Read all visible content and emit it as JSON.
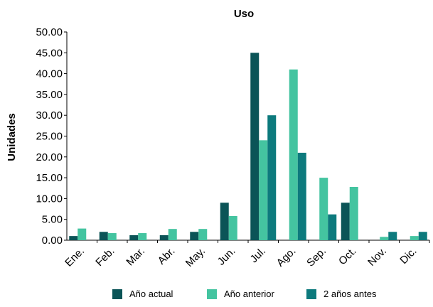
{
  "chart_data": {
    "type": "bar",
    "title": "Uso",
    "xlabel": "",
    "ylabel": "Unidades",
    "ylim": [
      0,
      50
    ],
    "yticks": [
      "0.00",
      "5.00",
      "10.00",
      "15.00",
      "20.00",
      "25.00",
      "30.00",
      "35.00",
      "40.00",
      "45.00",
      "50.00"
    ],
    "categories": [
      "Ene.",
      "Feb.",
      "Mar.",
      "Abr.",
      "May.",
      "Jun.",
      "Jul.",
      "Ago.",
      "Sep.",
      "Oct.",
      "Nov.",
      "Dic."
    ],
    "grid": false,
    "legend_position": "bottom",
    "series": [
      {
        "name": "Año actual",
        "color": "#0b5457",
        "values": [
          1.0,
          2.0,
          1.2,
          1.2,
          2.0,
          9.0,
          45.0,
          0,
          0,
          9.0,
          0,
          0
        ]
      },
      {
        "name": "Año anterior",
        "color": "#44c4a0",
        "values": [
          2.8,
          1.7,
          1.7,
          2.7,
          2.7,
          5.8,
          24.0,
          41.0,
          15.0,
          12.8,
          0.8,
          1.0
        ]
      },
      {
        "name": "2 años antes",
        "color": "#0d7a7d",
        "values": [
          0,
          0,
          0,
          0,
          0,
          0,
          30.0,
          21.0,
          6.2,
          0,
          2.0,
          2.0
        ]
      }
    ]
  }
}
